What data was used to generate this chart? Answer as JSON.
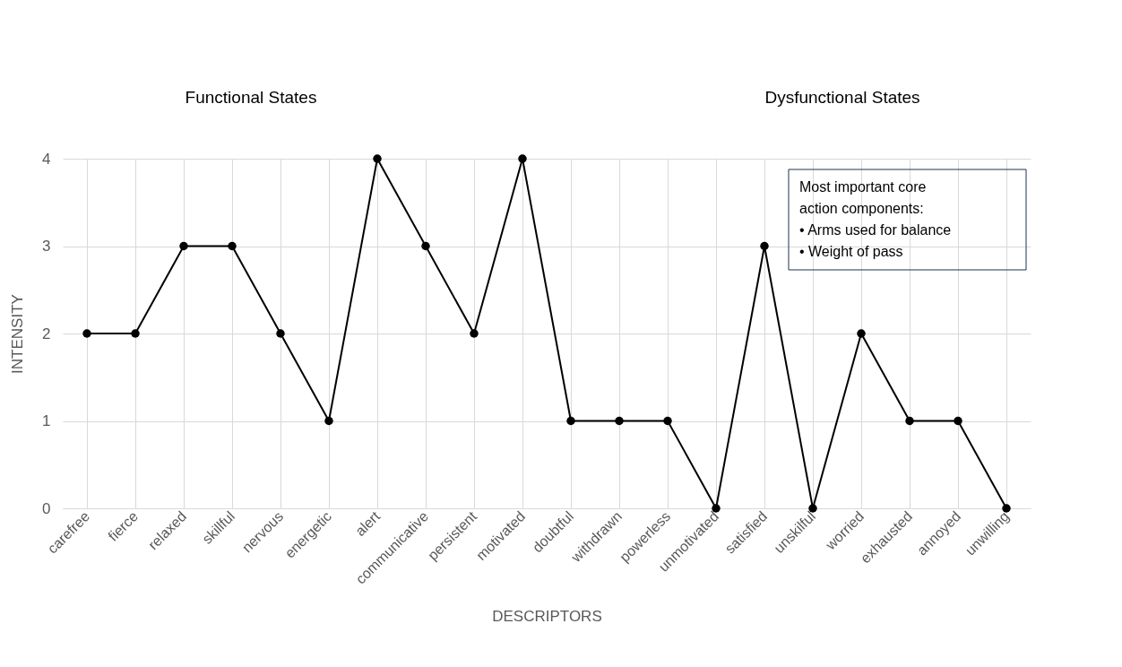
{
  "chart_data": {
    "type": "line",
    "xlabel": "DESCRIPTORS",
    "ylabel": "INTENSITY",
    "categories": [
      "carefree",
      "fierce",
      "relaxed",
      "skillful",
      "nervous",
      "energetic",
      "alert",
      "communicative",
      "persistent",
      "motivated",
      "doubtful",
      "withdrawn",
      "powerless",
      "unmotivated",
      "satisfied",
      "unskilful",
      "worried",
      "exhausted",
      "annoyed",
      "unwilling"
    ],
    "series": [
      {
        "color": "#000000",
        "values": [
          2,
          2,
          3,
          3,
          2,
          1,
          4,
          3,
          2,
          4,
          1,
          1,
          1,
          0,
          3,
          0,
          2,
          1,
          1,
          0
        ]
      }
    ],
    "ylim": [
      0,
      4
    ],
    "yticks": [
      0,
      1,
      2,
      3,
      4
    ],
    "grid": true,
    "marker": "circle",
    "line_style": "solid",
    "annotations": [
      "Functional  States",
      "Dysfunctional States",
      "Most important core",
      "action components:",
      "• Arms used for balance",
      "• Weight of pass"
    ]
  }
}
